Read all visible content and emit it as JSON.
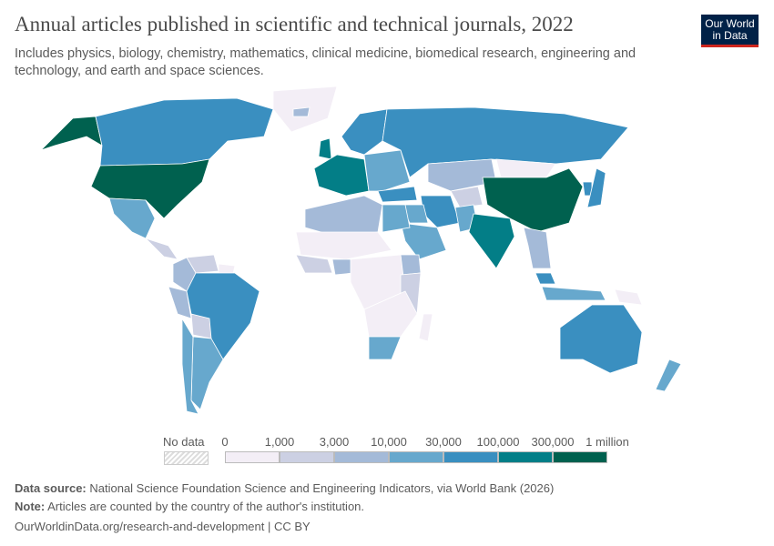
{
  "header": {
    "title": "Annual articles published in scientific and technical journals, 2022",
    "subtitle": "Includes physics, biology, chemistry, mathematics, clinical medicine, biomedical research, engineering and technology, and earth and space sciences.",
    "logo": "Our World in Data"
  },
  "legend": {
    "no_data": "No data",
    "labels": [
      "0",
      "1,000",
      "3,000",
      "10,000",
      "30,000",
      "100,000",
      "300,000",
      "1 million"
    ],
    "colors": [
      "#f3eef6",
      "#ccd0e3",
      "#a4bad8",
      "#67a8cd",
      "#3a8fc0",
      "#037e87",
      "#00614f"
    ],
    "no_data_color": "#ffffff"
  },
  "map_bins": {
    "usa": 6,
    "alaska": 6,
    "canada": 4,
    "greenland": 0,
    "mexico": 3,
    "central_america": 1,
    "colombia": 2,
    "venezuela": 1,
    "peru": 2,
    "brazil": 4,
    "bolivia": 1,
    "chile": 3,
    "argentina": 3,
    "guianas": 0,
    "uk": 5,
    "iceland": 2,
    "scandinavia": 4,
    "western_europe": 5,
    "eastern_europe": 3,
    "russia": 4,
    "kazakhstan": 2,
    "turkey": 4,
    "iran": 4,
    "middle_east": 3,
    "saudi": 3,
    "central_asia": 1,
    "pakistan": 3,
    "india": 5,
    "china": 6,
    "mongolia": 0,
    "korea": 4,
    "japan": 4,
    "se_asia": 2,
    "indonesia": 3,
    "malaysia": 4,
    "north_africa": 2,
    "egypt": 3,
    "sahel": 0,
    "west_africa": 1,
    "nigeria": 2,
    "ethiopia": 2,
    "central_africa": 0,
    "east_africa": 1,
    "southern_africa": 0,
    "south_africa": 3,
    "madagascar": 0,
    "australia": 4,
    "new_zealand": 3,
    "png": 0
  },
  "footer": {
    "source_label": "Data source:",
    "source": "National Science Foundation Science and Engineering Indicators, via World Bank (2026)",
    "note_label": "Note:",
    "note": "Articles are counted by the country of the author's institution.",
    "url": "OurWorldinData.org/research-and-development | CC BY"
  }
}
